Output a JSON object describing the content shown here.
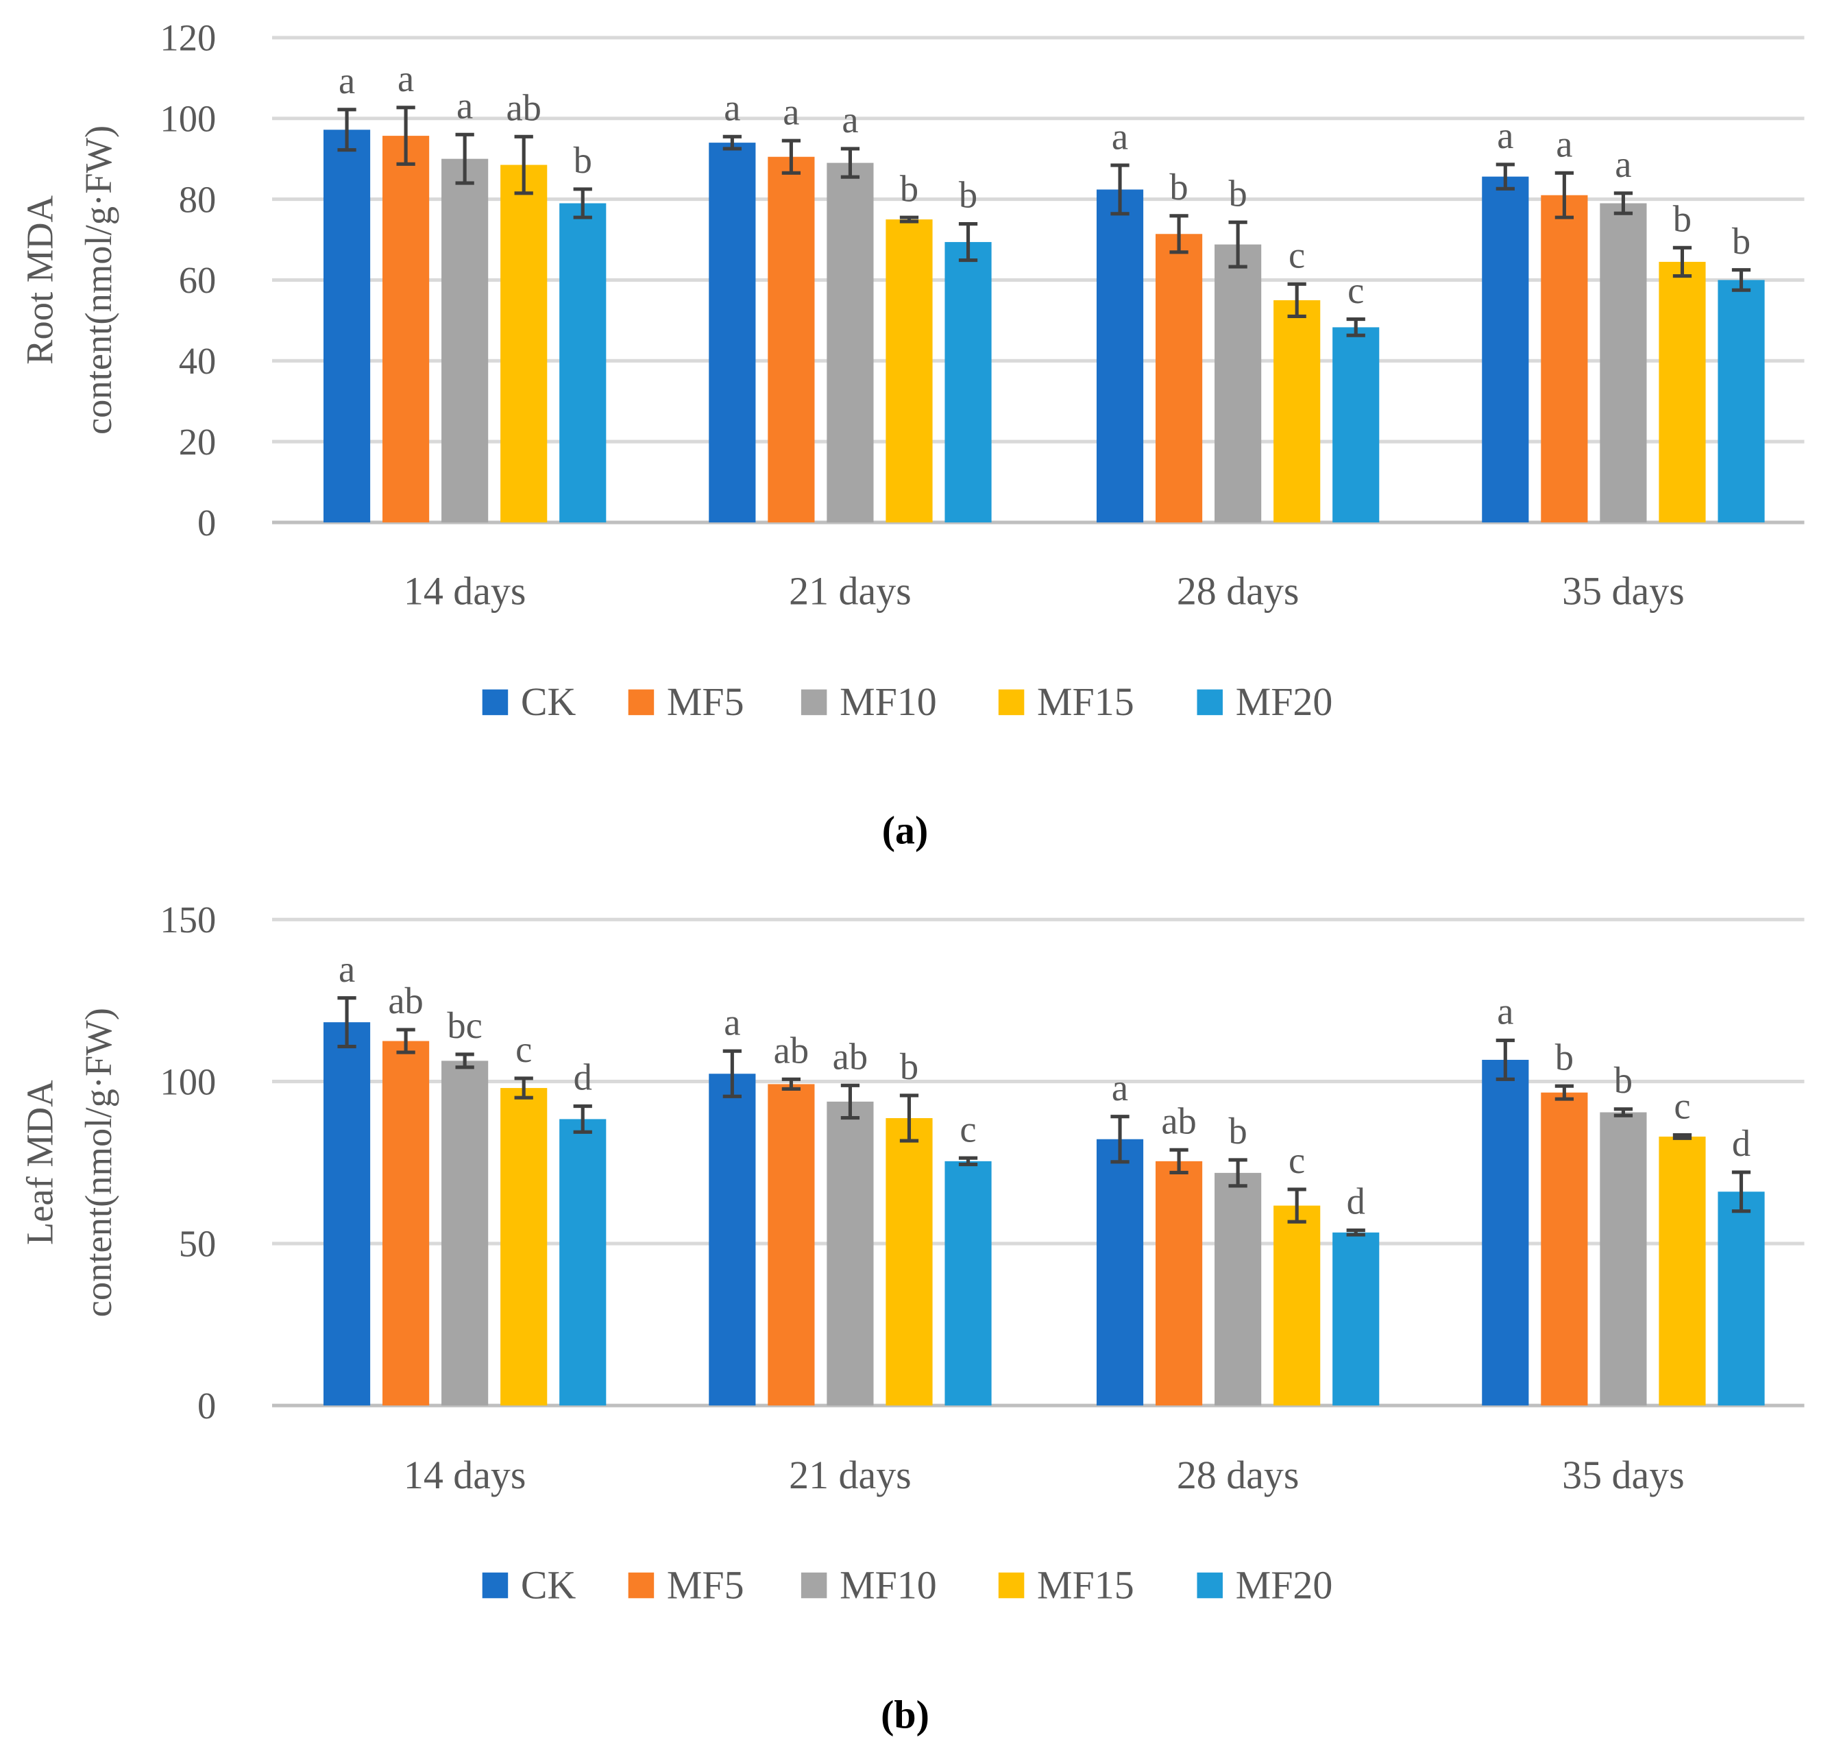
{
  "legend_colors": {
    "CK": "#1B70C8",
    "MF5": "#F97E26",
    "MF10": "#A5A5A5",
    "MF15": "#FFC000",
    "MF20": "#1F9BD7"
  },
  "chart_data": [
    {
      "type": "bar",
      "caption": "(a)",
      "ylabel_lines": [
        "Root MDA",
        "content(nmol/g·FW)"
      ],
      "ylim": [
        0,
        120
      ],
      "yticks": [
        "0",
        "20",
        "40",
        "60",
        "80",
        "100",
        "120"
      ],
      "grid": true,
      "legend_placement": "bottom",
      "categories": [
        "14 days",
        "21 days",
        "28 days",
        "35 days"
      ],
      "series": [
        {
          "name": "CK",
          "values": [
            97.2,
            94.0,
            82.4,
            85.6
          ],
          "errors": [
            5,
            1.5,
            6,
            3
          ],
          "letters": [
            "a",
            "a",
            "a",
            "a"
          ]
        },
        {
          "name": "MF5",
          "values": [
            95.7,
            90.5,
            71.4,
            81.0
          ],
          "errors": [
            7,
            4,
            4.5,
            5.5
          ],
          "letters": [
            "a",
            "a",
            "b",
            "a"
          ]
        },
        {
          "name": "MF10",
          "values": [
            90.0,
            89.0,
            68.8,
            79.0
          ],
          "errors": [
            6,
            3.5,
            5.5,
            2.5
          ],
          "letters": [
            "a",
            "a",
            "b",
            "a"
          ]
        },
        {
          "name": "MF15",
          "values": [
            88.5,
            75.0,
            55.0,
            64.5
          ],
          "errors": [
            7,
            0.5,
            4,
            3.5
          ],
          "letters": [
            "ab",
            "b",
            "c",
            "b"
          ]
        },
        {
          "name": "MF20",
          "values": [
            79.0,
            69.4,
            48.3,
            60.0
          ],
          "errors": [
            3.5,
            4.5,
            2,
            2.5
          ],
          "letters": [
            "b",
            "b",
            "c",
            "b"
          ]
        }
      ]
    },
    {
      "type": "bar",
      "caption": "(b)",
      "ylabel_lines": [
        "Leaf MDA",
        "content(nmol/g·FW)"
      ],
      "ylim": [
        0,
        150
      ],
      "yticks": [
        "0",
        "50",
        "100",
        "150"
      ],
      "grid": true,
      "legend_placement": "bottom",
      "categories": [
        "14 days",
        "21 days",
        "28 days",
        "35 days"
      ],
      "series": [
        {
          "name": "CK",
          "values": [
            118.3,
            102.4,
            82.2,
            106.7
          ],
          "errors": [
            7.5,
            7,
            7,
            6
          ],
          "letters": [
            "a",
            "a",
            "a",
            "a"
          ]
        },
        {
          "name": "MF5",
          "values": [
            112.5,
            99.2,
            75.4,
            96.6
          ],
          "errors": [
            3.5,
            1.5,
            3.5,
            2
          ],
          "letters": [
            "ab",
            "ab",
            "ab",
            "b"
          ]
        },
        {
          "name": "MF10",
          "values": [
            106.4,
            93.8,
            71.8,
            90.5
          ],
          "errors": [
            2,
            5,
            4,
            1
          ],
          "letters": [
            "bc",
            "ab",
            "b",
            "b"
          ]
        },
        {
          "name": "MF15",
          "values": [
            98.0,
            88.7,
            61.7,
            83.0
          ],
          "errors": [
            3,
            7,
            5,
            0.5
          ],
          "letters": [
            "c",
            "b",
            "c",
            "c"
          ]
        },
        {
          "name": "MF20",
          "values": [
            88.4,
            75.4,
            53.4,
            66.0
          ],
          "errors": [
            4,
            1,
            0.7,
            6
          ],
          "letters": [
            "d",
            "c",
            "d",
            "d"
          ]
        }
      ]
    }
  ]
}
